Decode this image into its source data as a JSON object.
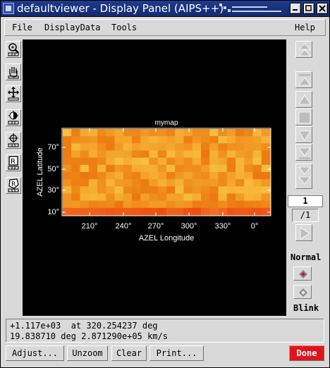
{
  "window": {
    "title": "defaultviewer - Display Panel (AIPS++)",
    "controls": [
      "minimize-icon",
      "maximize-icon",
      "close-icon"
    ]
  },
  "menubar": {
    "left": [
      "File",
      "DisplayData",
      "Tools"
    ],
    "help": "Help"
  },
  "tools": [
    "zoom-icon",
    "pan-hand-icon",
    "move-icon",
    "colormap-icon",
    "crosshair-icon",
    "rectangle-region-icon",
    "polygon-region-icon"
  ],
  "plot": {
    "title": "mymap",
    "xlabel": "AZEL Longitude",
    "ylabel": "AZEL Latitude",
    "xticks": [
      "210°",
      "240°",
      "270°",
      "300°",
      "330°",
      "0°"
    ],
    "yticks": [
      "70°",
      "50°",
      "30°",
      "10°"
    ],
    "colors": {
      "image_base": "#f39c15",
      "frame": "#ffffff",
      "background": "#000000"
    }
  },
  "animator": {
    "frame_value": "1",
    "frame_of": "/1",
    "mode_normal": "Normal",
    "mode_blink": "Blink"
  },
  "status": {
    "line1": "+1.117e+03  at 320.254237 deg",
    "line2": "19.838710 deg 2.871290e+05 km/s"
  },
  "buttons": {
    "adjust": "Adjust...",
    "unzoom": "Unzoom",
    "clear": "Clear",
    "print": "Print...",
    "done": "Done"
  }
}
